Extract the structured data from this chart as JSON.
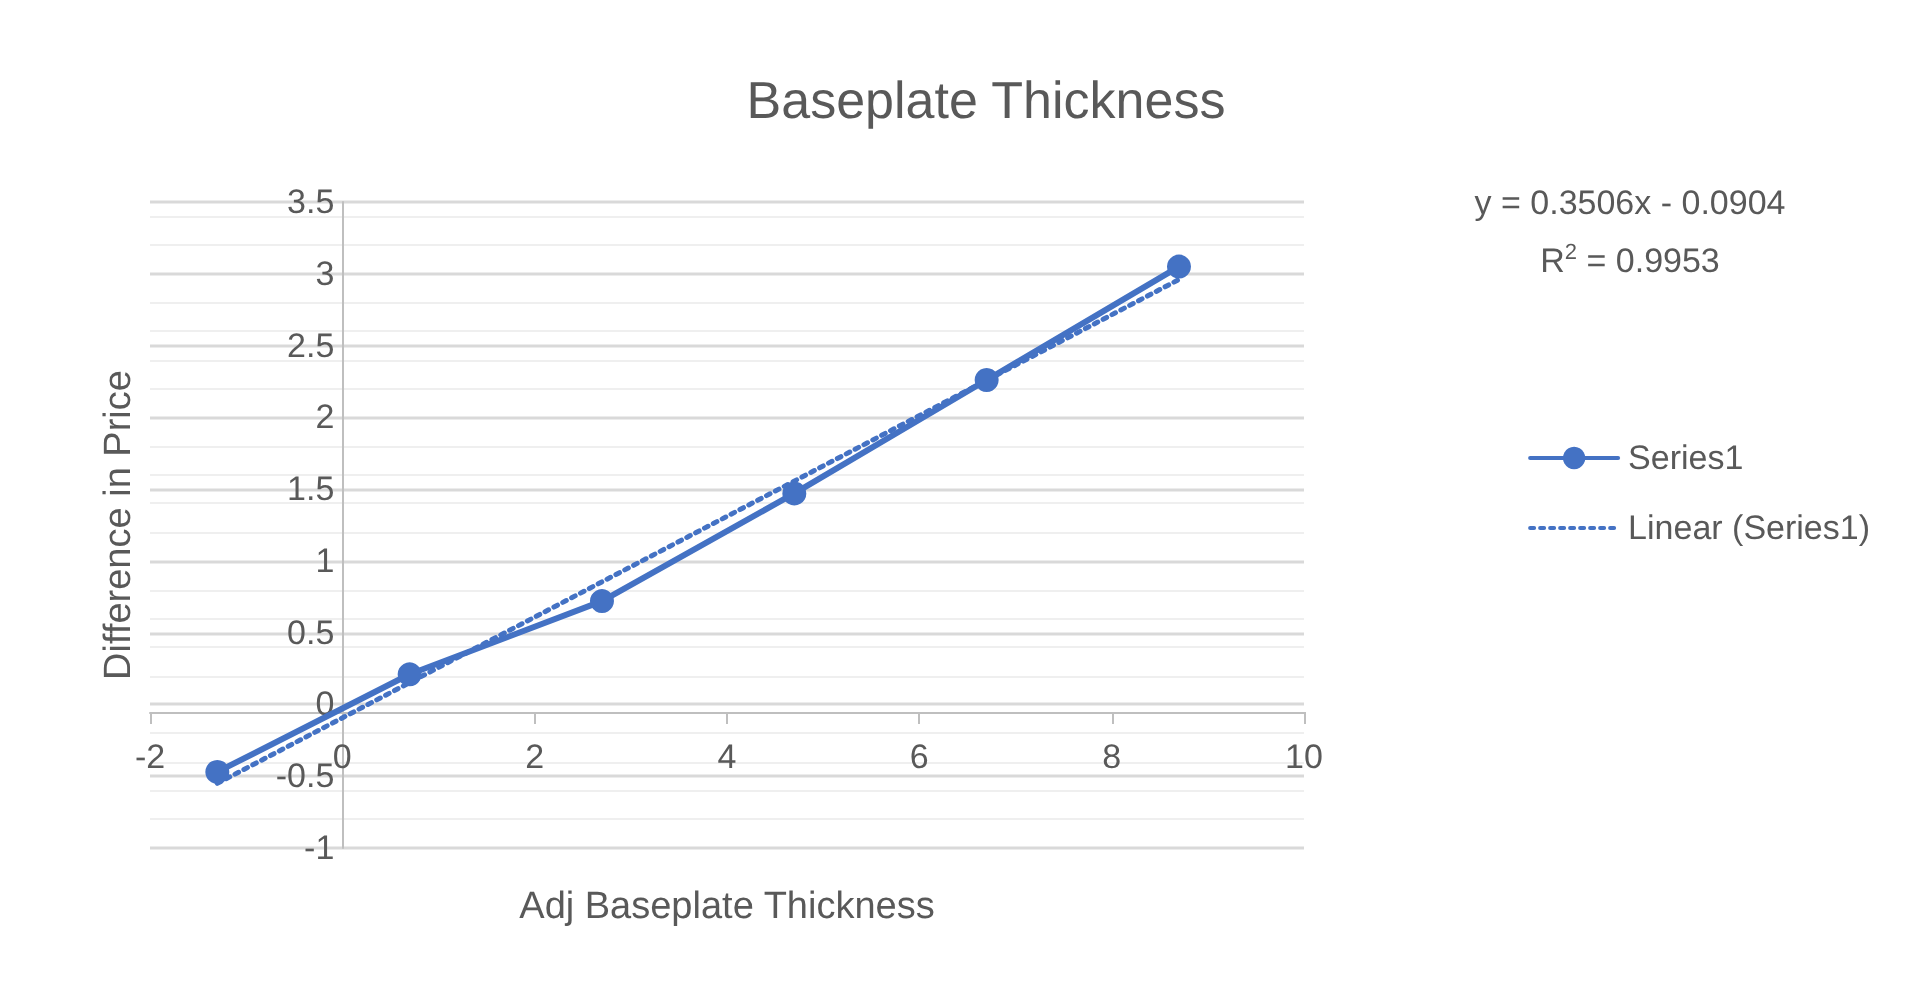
{
  "chart_data": {
    "type": "line",
    "title": "Baseplate Thickness",
    "xlabel": "Adj Baseplate Thickness",
    "ylabel": "Difference in Price",
    "annotations": [
      "y = 0.3506x - 0.0904",
      "R$^{2}$ = 0.9953"
    ],
    "xlim": [
      -2,
      10
    ],
    "xticks": [
      -2,
      0,
      2,
      4,
      6,
      8,
      10
    ],
    "ylim": [
      -1,
      3.5
    ],
    "yticks": [
      -1,
      -0.5,
      0,
      0.5,
      1,
      1.5,
      2,
      2.5,
      3,
      3.5
    ],
    "grid": "y",
    "legend": "right",
    "series": [
      {
        "name": "Series1",
        "color": "#4472c4",
        "x": [
          -1.3,
          0.7,
          2.7,
          4.7,
          6.7,
          8.7
        ],
        "values": [
          -0.47,
          0.21,
          0.72,
          1.47,
          2.26,
          3.05
        ],
        "marker": "circle",
        "line_style": "solid"
      },
      {
        "name": "Linear (Series1)",
        "color": "#4472c4",
        "x": [
          -1.3,
          8.7
        ],
        "values": [
          -0.55,
          2.96
        ],
        "marker": "none",
        "line_style": "dotted"
      }
    ]
  }
}
